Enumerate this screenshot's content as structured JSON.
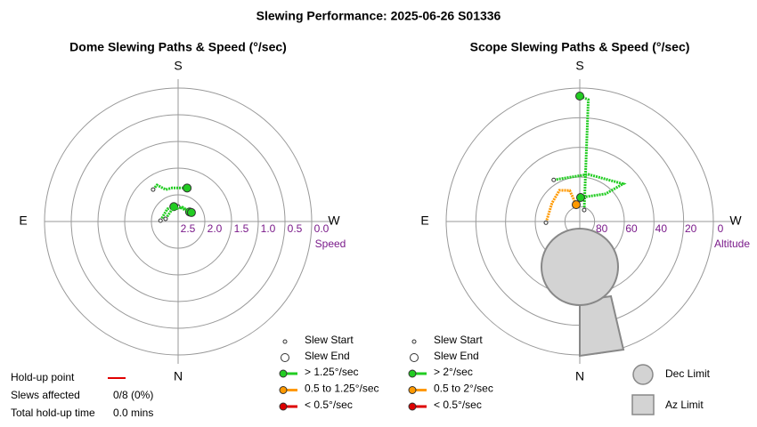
{
  "title": "Slewing Performance: 2025-06-26 S01336",
  "hold_up": {
    "label": "Hold-up point",
    "slews_label": "Slews affected",
    "slews": "0/8 (0%)",
    "time_label": "Total hold-up time",
    "time": "0.0 mins"
  },
  "chart_data": [
    {
      "type": "polar",
      "title": "Dome Slewing Paths & Speed (°/sec)",
      "directions": {
        "top": "S",
        "bottom": "N",
        "left": "E",
        "right": "W"
      },
      "r_label": "Speed",
      "rlim": [
        3.0,
        0.5
      ],
      "rticks": [
        2.5,
        {
          "value": 2.0,
          "label": "2.0"
        },
        1.5,
        {
          "value": 1.0,
          "label": "1.0"
        },
        0.5,
        {
          "value": 0,
          "label": "0.0"
        }
      ],
      "legend": [
        "Slew Start",
        "Slew End"
      ],
      "series": [
        {
          "name": "> 1.25°/sec",
          "color": "#22cc22"
        },
        {
          "name": "0.5 to 1.25°/sec",
          "color": "#ff9900"
        },
        {
          "name": "< 0.5°/sec",
          "color": "#dd0000"
        }
      ],
      "slews": [
        {
          "color": "#22cc22",
          "az": [
            142,
            150,
            159,
            170,
            195
          ],
          "r": [
            2.24,
            2.21,
            2.36,
            2.36,
            2.35
          ]
        },
        {
          "color": "#22cc22",
          "az": [
            180,
            230
          ],
          "r": [
            2.72,
            2.72
          ]
        },
        {
          "color": "#22cc22",
          "az": [
            93,
            139,
            164
          ],
          "r": [
            2.67,
            2.69,
            2.71
          ]
        },
        {
          "color": "#22cc22",
          "az": [
            102,
            152,
            197,
            236
          ],
          "r": [
            2.76,
            2.75,
            2.72,
            2.7
          ]
        }
      ]
    },
    {
      "type": "polar",
      "title": "Scope Slewing Paths & Speed (°/sec)",
      "directions": {
        "top": "S",
        "bottom": "N",
        "left": "E",
        "right": "W"
      },
      "r_label": "Altitude",
      "rlim": [
        90,
        0
      ],
      "rticks": [
        80,
        60,
        40,
        20,
        0
      ],
      "legend": [
        "Slew Start",
        "Slew End"
      ],
      "series": [
        {
          "name": "> 2°/sec",
          "color": "#22cc22"
        },
        {
          "name": "0.5 to 2°/sec",
          "color": "#ff9900"
        },
        {
          "name": "< 0.5°/sec",
          "color": "#dd0000"
        }
      ],
      "limits": [
        "Dec Limit",
        "Az Limit"
      ],
      "slews": [
        {
          "color": "#22cc22",
          "az": [
            201,
            184,
            180
          ],
          "r": [
            81.7,
            7.6,
            5.4
          ]
        },
        {
          "color": "#22cc22",
          "az": [
            148,
            190,
            229,
            223,
            182
          ],
          "r": [
            56.9,
            57.7,
            51.3,
            64.5,
            73.8
          ]
        },
        {
          "color": "#ff9900",
          "az": [
            88,
            124,
            147,
            162,
            168
          ],
          "r": [
            67.2,
            67.5,
            64.9,
            68,
            78.4
          ]
        }
      ]
    }
  ]
}
